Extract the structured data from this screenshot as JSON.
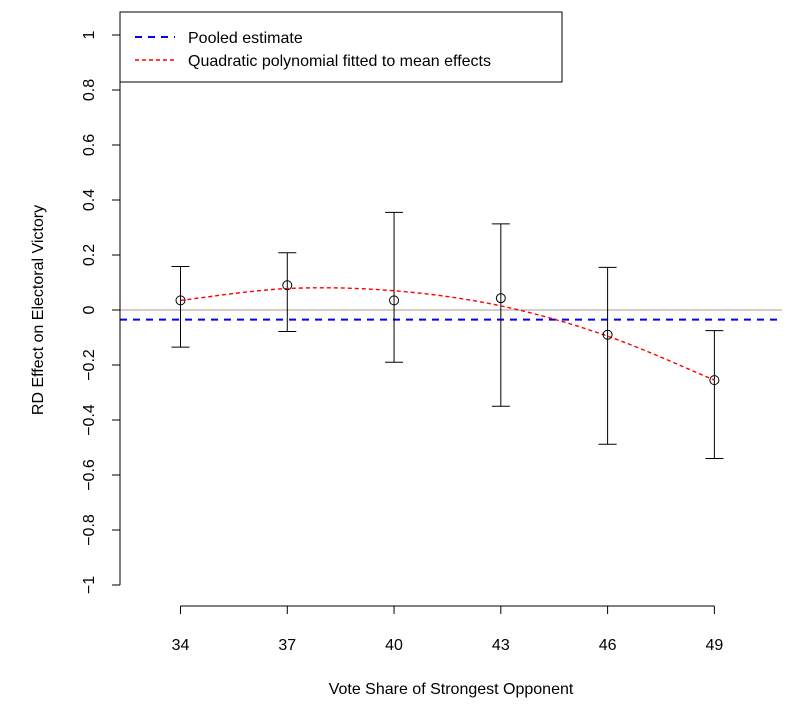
{
  "chart_data": {
    "type": "scatter",
    "xlabel": "Vote Share of Strongest Opponent",
    "ylabel": "RD Effect on Electoral Victory",
    "xlim": [
      32.3,
      50.9
    ],
    "ylim": [
      -1,
      1
    ],
    "x_ticks": [
      34,
      37,
      40,
      43,
      46,
      49
    ],
    "y_ticks": [
      {
        "value": 1,
        "label": "1"
      },
      {
        "value": 0.8,
        "label": "0.8"
      },
      {
        "value": 0.6,
        "label": "0.6"
      },
      {
        "value": 0.4,
        "label": "0.4"
      },
      {
        "value": 0.2,
        "label": "0.2"
      },
      {
        "value": 0,
        "label": "0"
      },
      {
        "value": -0.2,
        "label": "−0.2"
      },
      {
        "value": -0.4,
        "label": "−0.4"
      },
      {
        "value": -0.6,
        "label": "−0.6"
      },
      {
        "value": -0.8,
        "label": "−0.8"
      },
      {
        "value": -1,
        "label": "−1"
      }
    ],
    "points": [
      {
        "x": 34,
        "y": 0.035,
        "lower": -0.135,
        "upper": 0.158
      },
      {
        "x": 37,
        "y": 0.09,
        "lower": -0.078,
        "upper": 0.208
      },
      {
        "x": 40,
        "y": 0.035,
        "lower": -0.19,
        "upper": 0.355
      },
      {
        "x": 43,
        "y": 0.043,
        "lower": -0.35,
        "upper": 0.313
      },
      {
        "x": 46,
        "y": -0.09,
        "lower": -0.488,
        "upper": 0.155
      },
      {
        "x": 49,
        "y": -0.255,
        "lower": -0.54,
        "upper": -0.075
      }
    ],
    "zero_line": {
      "y": 0,
      "color": "#bebebe"
    },
    "pooled_estimate": {
      "name": "Pooled estimate",
      "y": -0.035,
      "color": "#0000ff"
    },
    "quadratic_fit": {
      "name": "Quadratic polynomial fitted to mean effects",
      "color": "#ff0000",
      "x": [
        34,
        37,
        40,
        43,
        46,
        49
      ],
      "y": [
        0.035,
        0.078,
        0.07,
        0.015,
        -0.095,
        -0.255
      ]
    },
    "legend": {
      "position": "top-left",
      "entries": [
        {
          "label": "Pooled estimate",
          "color": "#0000ff"
        },
        {
          "label": "Quadratic polynomial fitted to mean effects",
          "color": "#ff0000"
        }
      ]
    },
    "grid": false
  }
}
